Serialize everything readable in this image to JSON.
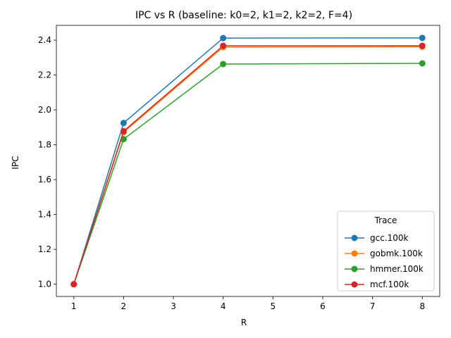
{
  "chart_data": {
    "type": "line",
    "title": "IPC vs R  (baseline: k0=2, k1=2, k2=2, F=4)",
    "xlabel": "R",
    "ylabel": "IPC",
    "x": [
      1,
      2,
      4,
      8
    ],
    "xlim": [
      0.65,
      8.35
    ],
    "ylim": [
      0.93,
      2.485
    ],
    "xticks": [
      1,
      2,
      3,
      4,
      5,
      6,
      7,
      8
    ],
    "xtick_labels": [
      "1",
      "2",
      "3",
      "4",
      "5",
      "6",
      "7",
      "8"
    ],
    "yticks": [
      1.0,
      1.2,
      1.4,
      1.6,
      1.8,
      2.0,
      2.2,
      2.4
    ],
    "ytick_labels": [
      "1.0",
      "1.2",
      "1.4",
      "1.6",
      "1.8",
      "2.0",
      "2.2",
      "2.4"
    ],
    "grid": false,
    "legend": {
      "title": "Trace",
      "placement": "lower-right"
    },
    "series": [
      {
        "name": "gcc.100k",
        "color": "#1f77b4",
        "values": [
          1.0,
          1.925,
          2.412,
          2.413
        ]
      },
      {
        "name": "gobmk.100k",
        "color": "#ff7f0e",
        "values": [
          1.0,
          1.872,
          2.36,
          2.362
        ]
      },
      {
        "name": "hmmer.100k",
        "color": "#2ca02c",
        "values": [
          1.0,
          1.832,
          2.263,
          2.267
        ]
      },
      {
        "name": "mcf.100k",
        "color": "#d62728",
        "values": [
          1.0,
          1.878,
          2.368,
          2.368
        ]
      }
    ]
  }
}
